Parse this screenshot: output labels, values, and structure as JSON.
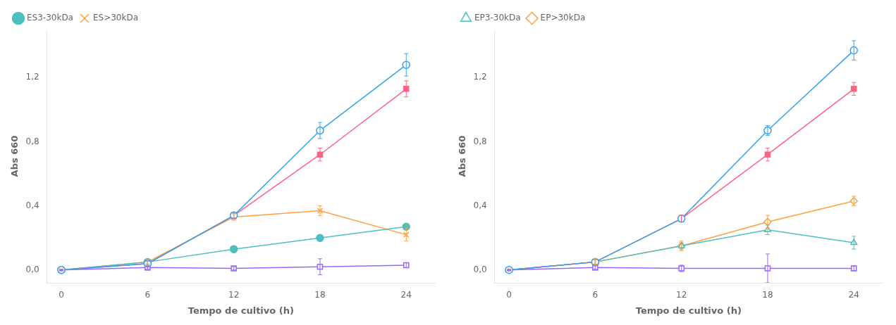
{
  "chart_data": [
    {
      "type": "line",
      "xlabel": "Tempo de cultivo (h)",
      "ylabel": "Abs 660",
      "x": [
        0,
        6,
        12,
        18,
        24
      ],
      "xlim": [
        -1,
        26
      ],
      "xticks": [
        0,
        6,
        12,
        18,
        24
      ],
      "ylim": [
        -0.08,
        1.5
      ],
      "yticks": [
        {
          "value": 0.0,
          "label": "0,0"
        },
        {
          "value": 0.4,
          "label": "0,4"
        },
        {
          "value": 0.8,
          "label": "0,8"
        },
        {
          "value": 1.2,
          "label": "1,2"
        }
      ],
      "grid": false,
      "legend": "upper left",
      "series": [
        {
          "marker": "circle-open",
          "values": [
            0.0,
            0.04,
            0.34,
            0.87,
            1.28
          ],
          "yerr": [
            0.005,
            0.015,
            0.015,
            0.05,
            0.07
          ]
        },
        {
          "marker": "square",
          "values": [
            0.0,
            0.04,
            0.34,
            0.72,
            1.13
          ],
          "yerr": [
            0.005,
            0.015,
            0.02,
            0.04,
            0.05
          ]
        },
        {
          "name": "ES3-30kDa",
          "marker": "circle",
          "values": [
            0.0,
            0.05,
            0.13,
            0.2,
            0.27
          ],
          "yerr": [
            0.003,
            0.015,
            0.02,
            0.02,
            0.02
          ]
        },
        {
          "name": "ES>30kDa",
          "marker": "x",
          "values": [
            0.0,
            0.05,
            0.33,
            0.37,
            0.22
          ],
          "yerr": [
            0.003,
            0.015,
            0.02,
            0.03,
            0.04
          ]
        },
        {
          "marker": "square-open",
          "values": [
            0.0,
            0.015,
            0.01,
            0.02,
            0.03
          ],
          "yerr": [
            0.003,
            0.01,
            0.01,
            0.05,
            0.015
          ]
        }
      ]
    },
    {
      "type": "line",
      "xlabel": "Tempo de cultivo (h)",
      "ylabel": "Abs 660",
      "x": [
        0,
        6,
        12,
        18,
        24
      ],
      "xlim": [
        -1,
        26
      ],
      "xticks": [
        0,
        6,
        12,
        18,
        24
      ],
      "ylim": [
        -0.08,
        1.5
      ],
      "yticks": [
        {
          "value": 0.0,
          "label": "0,0"
        },
        {
          "value": 0.4,
          "label": "0,4"
        },
        {
          "value": 0.8,
          "label": "0,8"
        },
        {
          "value": 1.2,
          "label": "1,2"
        }
      ],
      "grid": false,
      "legend": "upper left",
      "series": [
        {
          "marker": "circle-open",
          "values": [
            0.0,
            0.05,
            0.32,
            0.87,
            1.37
          ],
          "yerr": [
            0.005,
            0.015,
            0.02,
            0.03,
            0.06
          ]
        },
        {
          "marker": "square",
          "values": [
            0.0,
            0.05,
            0.32,
            0.72,
            1.13
          ],
          "yerr": [
            0.005,
            0.015,
            0.02,
            0.04,
            0.04
          ]
        },
        {
          "name": "EP3-30kDa",
          "marker": "triangle-open",
          "values": [
            0.0,
            0.05,
            0.15,
            0.25,
            0.17
          ],
          "yerr": [
            0.003,
            0.02,
            0.02,
            0.03,
            0.04
          ]
        },
        {
          "name": "EP>30kDa",
          "marker": "diamond-open",
          "values": [
            0.0,
            0.05,
            0.15,
            0.3,
            0.43
          ],
          "yerr": [
            0.003,
            0.02,
            0.03,
            0.04,
            0.03
          ]
        },
        {
          "marker": "square-open",
          "values": [
            0.0,
            0.015,
            0.01,
            0.01,
            0.01
          ],
          "yerr": [
            0.003,
            0.01,
            0.02,
            0.09,
            0.015
          ]
        }
      ]
    }
  ]
}
